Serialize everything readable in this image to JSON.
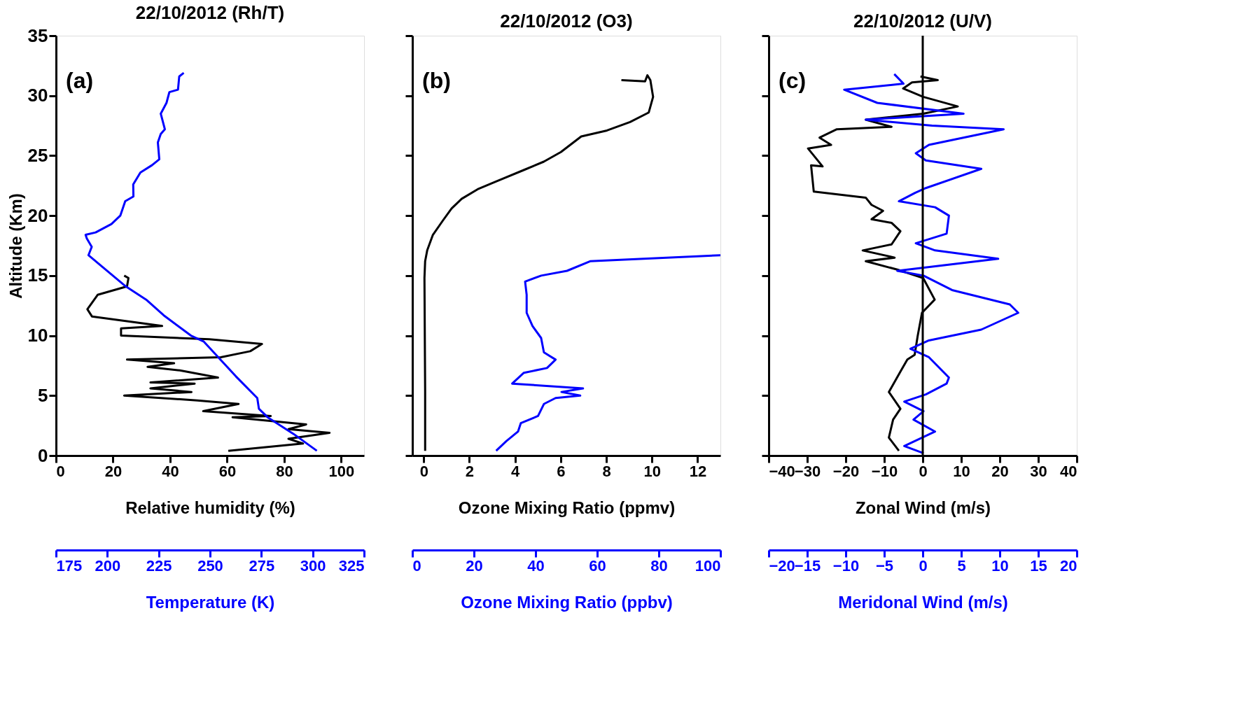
{
  "chart_data": [
    {
      "type": "line",
      "title": "22/10/2012 (Rh/T)",
      "xlabel": "Relative humidity (%)",
      "x2label": "Temperature (K)",
      "ylabel": "Altitude (Km)",
      "annotations": [
        "(a)"
      ],
      "xlim": [
        0,
        108
      ],
      "xticks": [
        0,
        20,
        40,
        60,
        80,
        100
      ],
      "x2lim": [
        175,
        325
      ],
      "x2ticks": [
        175,
        200,
        225,
        250,
        275,
        300,
        325
      ],
      "ylim": [
        0,
        35
      ],
      "yticks": [
        0,
        5,
        10,
        15,
        20,
        25,
        30,
        35
      ],
      "series": [
        {
          "color": "#000000",
          "x": [
            60.4,
            86.6,
            81.5,
            95.9,
            81.5,
            87.7,
            61.9,
            75.3,
            51.6,
            64,
            49.6,
            23.9,
            47.5,
            33.1,
            48.6,
            33.1,
            56.8,
            43.4,
            32.1,
            41.4,
            24.9,
            57.8,
            68.1,
            72.2,
            53.7,
            22.8,
            22.8,
            37.2,
            12.6,
            11,
            14.6,
            24.9,
            25.4,
            23.9
          ],
          "values": [
            0.4,
            1,
            1.4,
            1.9,
            2.2,
            2.6,
            3.2,
            3.3,
            3.7,
            4.3,
            4.6,
            5,
            5.3,
            5.6,
            6,
            6.1,
            6.5,
            7.1,
            7.4,
            7.7,
            8,
            8.2,
            8.7,
            9.3,
            9.7,
            10,
            10.6,
            10.8,
            11.6,
            12.2,
            13.4,
            14.1,
            14.8,
            15
          ]
        },
        {
          "color": "#0000ff",
          "axis": "x2",
          "x": [
            302,
            290.7,
            278,
            273.8,
            273,
            262.6,
            254,
            247,
            240.7,
            227.4,
            218.9,
            209,
            197.8,
            190.8,
            192.4,
            190,
            189.4,
            194.3,
            202,
            206.3,
            208.7,
            212.7,
            212.6,
            216.1,
            221.7,
            225.3,
            224.6,
            226,
            228,
            226,
            228.8,
            230.2,
            234.4,
            235,
            237.2
          ],
          "values": [
            0.4,
            1.8,
            3.2,
            3.9,
            4.8,
            6.6,
            8.2,
            9.5,
            10,
            11.7,
            13,
            14.1,
            15.7,
            16.7,
            17.4,
            18.1,
            18.4,
            18.6,
            19.3,
            20,
            21.2,
            21.6,
            22.6,
            23.6,
            24.2,
            24.7,
            26.1,
            26.8,
            27.2,
            28.5,
            29.4,
            30.3,
            30.5,
            31.6,
            31.9
          ]
        }
      ]
    },
    {
      "type": "line",
      "title": "22/10/2012 (O3)",
      "xlabel": "Ozone Mixing Ratio (ppmv)",
      "x2label": "Ozone Mixing Ratio (ppbv)",
      "annotations": [
        "(b)"
      ],
      "tick_labels": "x",
      "xlim": [
        -0.5,
        13
      ],
      "xticks": [
        0,
        2,
        4,
        6,
        8,
        10,
        12
      ],
      "x2lim": [
        0,
        100
      ],
      "x2ticks": [
        0,
        20,
        40,
        60,
        80,
        100
      ],
      "ylim": [
        0,
        35
      ],
      "yticks": [
        0,
        5,
        10,
        15,
        20,
        25,
        30,
        35
      ],
      "series": [
        {
          "color": "#000000",
          "x": [
            0.06,
            0.06,
            0.03,
            0.06,
            0.15,
            0.4,
            0.84,
            1.22,
            1.66,
            2.36,
            3.11,
            4.38,
            5.26,
            6.01,
            6.9,
            8.03,
            9.04,
            9.86,
            10.05,
            9.93,
            9.8,
            9.7,
            8.66
          ],
          "values": [
            0.4,
            5.3,
            14.8,
            16.2,
            17.1,
            18.4,
            19.6,
            20.6,
            21.4,
            22.2,
            22.8,
            23.8,
            24.5,
            25.3,
            26.6,
            27.1,
            27.8,
            28.6,
            29.9,
            31.3,
            31.7,
            31.2,
            31.3
          ]
        },
        {
          "color": "#0000ff",
          "axis": "x2",
          "x": [
            27.2,
            30.5,
            34.3,
            35.2,
            40.8,
            42.7,
            46.5,
            54.5,
            48.4,
            55.4,
            32.4,
            36.2,
            43.7,
            46.5,
            42.7,
            41.8,
            39,
            37.1,
            37.1,
            36.6,
            41.8,
            50.2,
            57.7,
            100
          ],
          "values": [
            0.4,
            1.2,
            2,
            2.7,
            3.3,
            4.3,
            4.8,
            5,
            5.3,
            5.6,
            6,
            6.9,
            7.3,
            8,
            8.6,
            9.8,
            10.8,
            11.9,
            13.4,
            14.5,
            15,
            15.4,
            16.2,
            16.7
          ]
        }
      ]
    },
    {
      "type": "line",
      "title": "22/10/2012 (U/V)",
      "xlabel": "Zonal Wind (m/s)",
      "x2label": "Meridonal Wind (m/s)",
      "annotations": [
        "(c)"
      ],
      "tick_labels": "x",
      "xlim": [
        -40,
        40
      ],
      "xticks": [
        -40,
        -30,
        -20,
        -10,
        0,
        10,
        20,
        30,
        40
      ],
      "x2lim": [
        -20,
        20
      ],
      "x2ticks": [
        -20,
        -15,
        -10,
        -5,
        0,
        5,
        10,
        15,
        20
      ],
      "ylim": [
        0,
        35
      ],
      "yticks": [
        0,
        5,
        10,
        15,
        20,
        25,
        30,
        35
      ],
      "ref_lines": [
        {
          "axis": "x",
          "value": 0,
          "color": "#000000"
        }
      ],
      "series": [
        {
          "color": "#000000",
          "x": [
            -6.2,
            -8.8,
            -7.7,
            -5.8,
            -8.8,
            -5.8,
            -4,
            -2.1,
            -1.3,
            -0.2,
            3.1,
            0.1,
            -6.6,
            -14.8,
            -7.3,
            -15.6,
            -8.1,
            -5.8,
            -8.1,
            -13.3,
            -10.3,
            -13.3,
            -14.8,
            -28.3,
            -29,
            -26,
            -29.8,
            -23.8,
            -26.8,
            -22.3,
            -8.1,
            -14.8,
            0.1,
            9.1,
            0.1,
            -5.1,
            -2.8,
            3.9,
            -0.6
          ],
          "values": [
            0.4,
            1.5,
            3,
            3.9,
            5.3,
            7,
            8,
            8.4,
            10,
            11.9,
            13,
            14.8,
            15.5,
            16.2,
            16.5,
            17.1,
            17.6,
            18.7,
            19.4,
            19.7,
            20.4,
            20.9,
            21.5,
            22,
            24.2,
            24.1,
            25.6,
            25.9,
            26.5,
            27.2,
            27.4,
            28,
            28.5,
            29.1,
            29.9,
            30.6,
            31.1,
            31.3,
            31.6
          ]
        },
        {
          "color": "#0000ff",
          "axis": "x2",
          "x": [
            0.1,
            -2.4,
            1.6,
            -1.2,
            0.1,
            -2.4,
            0.4,
            3.1,
            3.4,
            0.8,
            -1.6,
            0.8,
            7.6,
            12.4,
            11.3,
            3.8,
            0.1,
            -3.3,
            9.8,
            1.6,
            -0.9,
            3.1,
            3.4,
            1.6,
            -3.1,
            -1,
            0.4,
            7.6,
            0.4,
            -0.9,
            0.8,
            10.5,
            1.2,
            -7.4,
            5.3,
            -5.9,
            -10.2,
            -2.5,
            -3.7
          ],
          "values": [
            0.2,
            0.8,
            2,
            3,
            3.7,
            4.5,
            5.1,
            6,
            6.5,
            8.2,
            8.9,
            9.6,
            10.5,
            11.9,
            12.6,
            13.8,
            15,
            15.4,
            16.4,
            17.1,
            17.7,
            18.5,
            20,
            20.7,
            21.2,
            21.9,
            22.3,
            23.9,
            24.6,
            25.2,
            25.9,
            27.2,
            27.5,
            28,
            28.5,
            29.4,
            30.5,
            31,
            31.8
          ]
        }
      ]
    }
  ]
}
